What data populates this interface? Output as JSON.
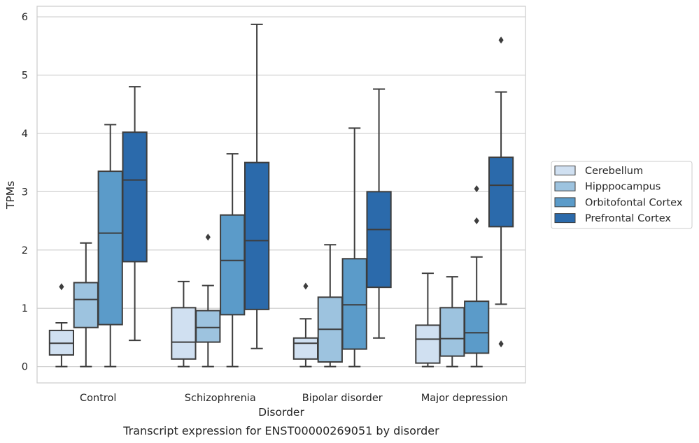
{
  "chart_data": {
    "type": "box",
    "title": "",
    "xlabel": "Disorder",
    "ylabel": "TPMs",
    "caption": "Transcript expression for ENST00000269051 by disorder",
    "ylim": [
      -0.28,
      6.18
    ],
    "yticks": [
      0,
      1,
      2,
      3,
      4,
      5,
      6
    ],
    "grid": "horizontal",
    "legend_position": "right-outside",
    "categories": [
      "Control",
      "Schizophrenia",
      "Bipolar disorder",
      "Major depression"
    ],
    "series": [
      {
        "name": "Cerebellum",
        "color": "#d0e0f1",
        "boxes": [
          {
            "whisker_low": 0.0,
            "q1": 0.2,
            "median": 0.4,
            "q3": 0.62,
            "whisker_high": 0.75,
            "outliers": [
              1.37
            ]
          },
          {
            "whisker_low": 0.0,
            "q1": 0.13,
            "median": 0.42,
            "q3": 1.01,
            "whisker_high": 1.46,
            "outliers": []
          },
          {
            "whisker_low": 0.0,
            "q1": 0.13,
            "median": 0.4,
            "q3": 0.49,
            "whisker_high": 0.82,
            "outliers": [
              1.38
            ]
          },
          {
            "whisker_low": 0.0,
            "q1": 0.06,
            "median": 0.47,
            "q3": 0.71,
            "whisker_high": 1.6,
            "outliers": []
          }
        ]
      },
      {
        "name": "Hipppocampus",
        "color": "#9dc3df",
        "boxes": [
          {
            "whisker_low": 0.0,
            "q1": 0.67,
            "median": 1.15,
            "q3": 1.44,
            "whisker_high": 2.12,
            "outliers": []
          },
          {
            "whisker_low": 0.0,
            "q1": 0.42,
            "median": 0.67,
            "q3": 0.96,
            "whisker_high": 1.39,
            "outliers": [
              2.22
            ]
          },
          {
            "whisker_low": 0.0,
            "q1": 0.08,
            "median": 0.64,
            "q3": 1.19,
            "whisker_high": 2.09,
            "outliers": []
          },
          {
            "whisker_low": 0.0,
            "q1": 0.18,
            "median": 0.48,
            "q3": 1.01,
            "whisker_high": 1.54,
            "outliers": []
          }
        ]
      },
      {
        "name": "Orbitofontal Cortex",
        "color": "#5b9bc9",
        "boxes": [
          {
            "whisker_low": 0.0,
            "q1": 0.72,
            "median": 2.29,
            "q3": 3.35,
            "whisker_high": 4.15,
            "outliers": []
          },
          {
            "whisker_low": 0.0,
            "q1": 0.89,
            "median": 1.82,
            "q3": 2.6,
            "whisker_high": 3.65,
            "outliers": []
          },
          {
            "whisker_low": 0.0,
            "q1": 0.3,
            "median": 1.06,
            "q3": 1.85,
            "whisker_high": 4.09,
            "outliers": []
          },
          {
            "whisker_low": 0.0,
            "q1": 0.23,
            "median": 0.58,
            "q3": 1.12,
            "whisker_high": 1.88,
            "outliers": [
              2.5,
              3.05
            ]
          }
        ]
      },
      {
        "name": "Prefrontal Cortex",
        "color": "#2b6aab",
        "boxes": [
          {
            "whisker_low": 0.45,
            "q1": 1.8,
            "median": 3.2,
            "q3": 4.02,
            "whisker_high": 4.8,
            "outliers": []
          },
          {
            "whisker_low": 0.31,
            "q1": 0.98,
            "median": 2.16,
            "q3": 3.5,
            "whisker_high": 5.87,
            "outliers": []
          },
          {
            "whisker_low": 0.49,
            "q1": 1.36,
            "median": 2.35,
            "q3": 3.0,
            "whisker_high": 4.76,
            "outliers": []
          },
          {
            "whisker_low": 1.07,
            "q1": 2.4,
            "median": 3.11,
            "q3": 3.59,
            "whisker_high": 4.71,
            "outliers": [
              0.39,
              5.6
            ]
          }
        ]
      }
    ]
  }
}
